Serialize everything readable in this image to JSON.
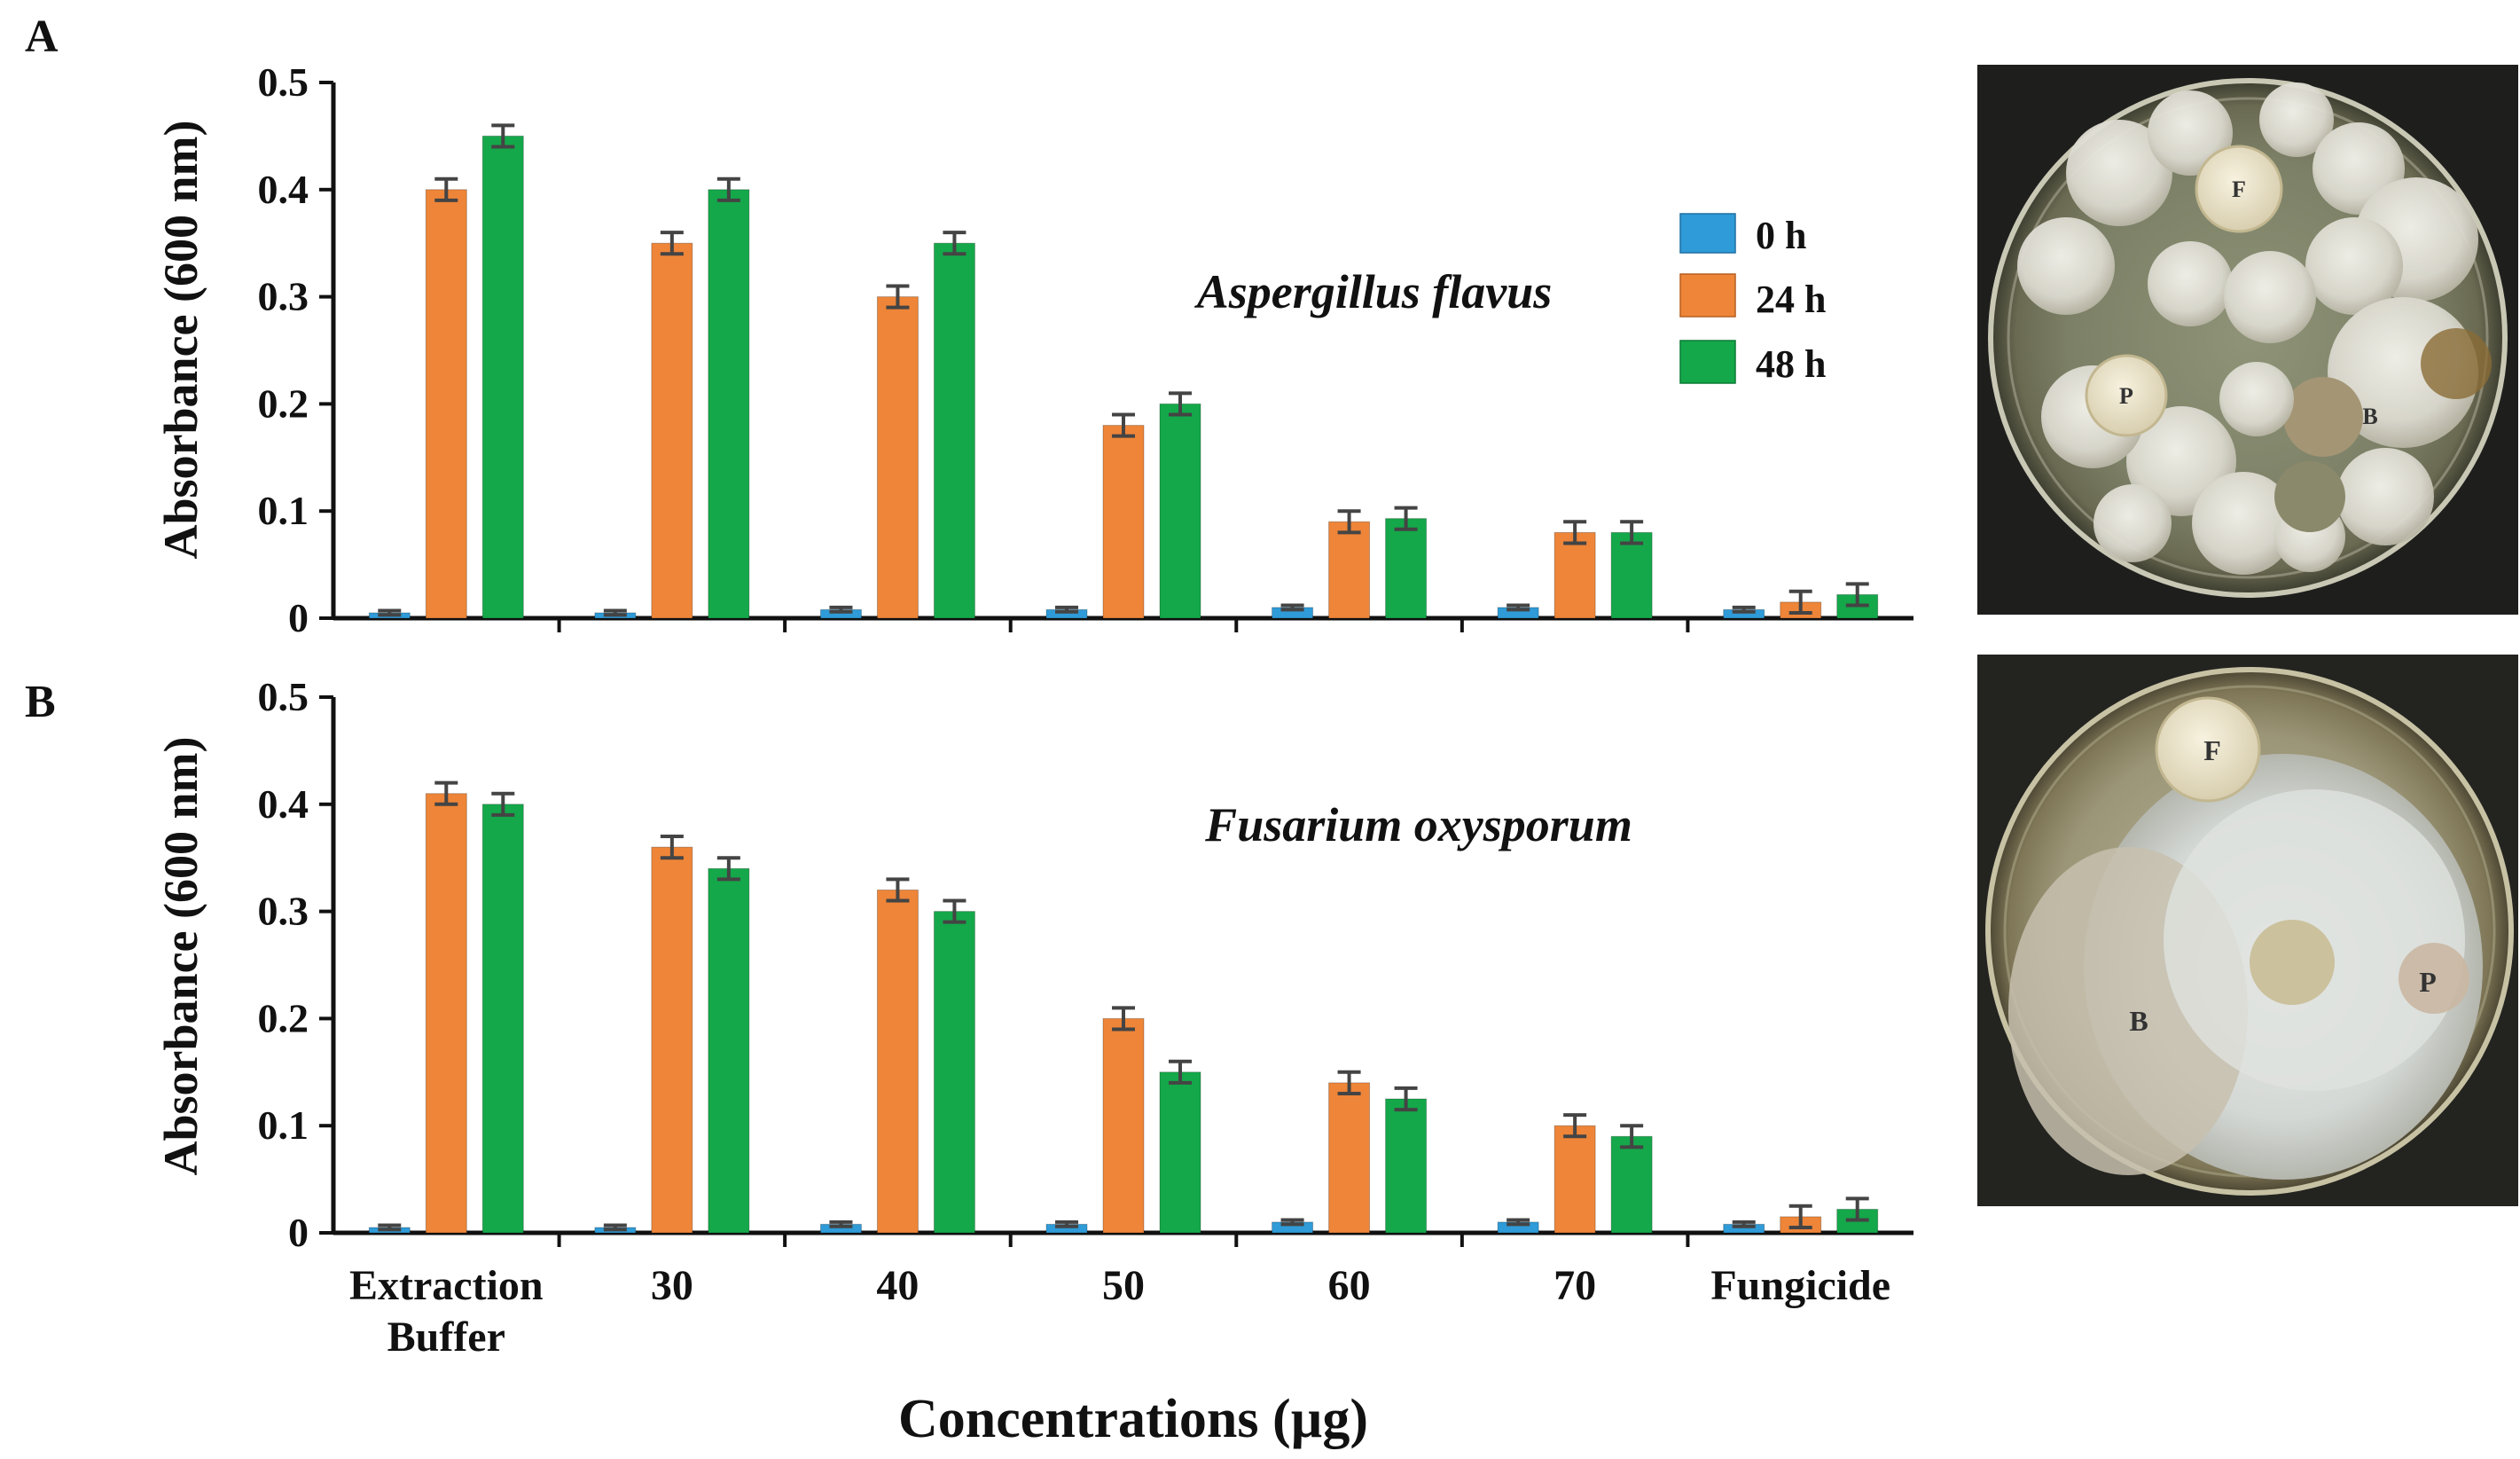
{
  "figure": {
    "panel_a_label": "A",
    "panel_b_label": "B",
    "y_axis_title": "Absorbance (600 nm)",
    "x_axis_title": "Concentrations (µg)",
    "category_labels": [
      [
        "Extraction",
        "Buffer"
      ],
      [
        "30"
      ],
      [
        "40"
      ],
      [
        "50"
      ],
      [
        "60"
      ],
      [
        "70"
      ],
      [
        "Fungicide"
      ]
    ],
    "y_tick_labels": [
      "0",
      "0.1",
      "0.2",
      "0.3",
      "0.4",
      "0.5"
    ],
    "legend": [
      {
        "label": "0 h",
        "color": "#2f9bd8"
      },
      {
        "label": "24 h",
        "color": "#ee8538"
      },
      {
        "label": "48 h",
        "color": "#14a84a"
      }
    ],
    "plate_a_labels": {
      "F": "F",
      "P": "P",
      "B": "B"
    },
    "plate_b_labels": {
      "F": "F",
      "P": "P",
      "B": "B"
    }
  },
  "chart_data": [
    {
      "type": "bar",
      "panel": "A",
      "title": "Aspergillus flavus",
      "xlabel": "",
      "ylabel": "Absorbance (600 nm)",
      "ylim": [
        0,
        0.5
      ],
      "yticks": [
        0,
        0.1,
        0.2,
        0.3,
        0.4,
        0.5
      ],
      "categories": [
        "Extraction Buffer",
        "30",
        "40",
        "50",
        "60",
        "70",
        "Fungicide"
      ],
      "series": [
        {
          "name": "0 h",
          "color": "#2f9bd8",
          "values": [
            0.005,
            0.005,
            0.008,
            0.008,
            0.01,
            0.01,
            0.008
          ],
          "errors": [
            0.002,
            0.002,
            0.002,
            0.002,
            0.002,
            0.002,
            0.002
          ]
        },
        {
          "name": "24 h",
          "color": "#ee8538",
          "values": [
            0.4,
            0.35,
            0.3,
            0.18,
            0.09,
            0.08,
            0.015
          ],
          "errors": [
            0.01,
            0.01,
            0.01,
            0.01,
            0.01,
            0.01,
            0.01
          ]
        },
        {
          "name": "48 h",
          "color": "#14a84a",
          "values": [
            0.45,
            0.4,
            0.35,
            0.2,
            0.093,
            0.08,
            0.022
          ],
          "errors": [
            0.01,
            0.01,
            0.01,
            0.01,
            0.01,
            0.01,
            0.01
          ]
        }
      ]
    },
    {
      "type": "bar",
      "panel": "B",
      "title": "Fusarium oxysporum",
      "xlabel": "Concentrations (µg)",
      "ylabel": "Absorbance (600 nm)",
      "ylim": [
        0,
        0.5
      ],
      "yticks": [
        0,
        0.1,
        0.2,
        0.3,
        0.4,
        0.5
      ],
      "categories": [
        "Extraction Buffer",
        "30",
        "40",
        "50",
        "60",
        "70",
        "Fungicide"
      ],
      "series": [
        {
          "name": "0 h",
          "color": "#2f9bd8",
          "values": [
            0.005,
            0.005,
            0.008,
            0.008,
            0.01,
            0.01,
            0.008
          ],
          "errors": [
            0.002,
            0.002,
            0.002,
            0.002,
            0.002,
            0.002,
            0.002
          ]
        },
        {
          "name": "24 h",
          "color": "#ee8538",
          "values": [
            0.41,
            0.36,
            0.32,
            0.2,
            0.14,
            0.1,
            0.015
          ],
          "errors": [
            0.01,
            0.01,
            0.01,
            0.01,
            0.01,
            0.01,
            0.01
          ]
        },
        {
          "name": "48 h",
          "color": "#14a84a",
          "values": [
            0.4,
            0.34,
            0.3,
            0.15,
            0.125,
            0.09,
            0.022
          ],
          "errors": [
            0.01,
            0.01,
            0.01,
            0.01,
            0.01,
            0.01,
            0.01
          ]
        }
      ]
    }
  ]
}
